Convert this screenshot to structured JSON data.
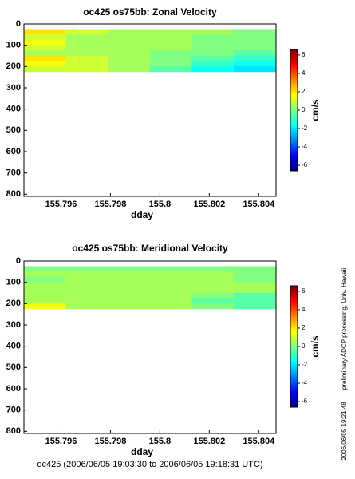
{
  "chart_data": [
    {
      "type": "heatmap",
      "title": "oc425 os75bb: Zonal Velocity",
      "xlabel": "dday",
      "colorbar_label": "cm/s",
      "x_edges": [
        155.7945,
        155.7962,
        155.7979,
        155.7996,
        155.8013,
        155.803,
        155.8047
      ],
      "y_edges": [
        25,
        50,
        75,
        100,
        125,
        150,
        175,
        200,
        225
      ],
      "values": [
        [
          2,
          1,
          0.5,
          0.5,
          0.5,
          0
        ],
        [
          1,
          0.5,
          0.5,
          0.5,
          0,
          0
        ],
        [
          1.5,
          0.5,
          0.5,
          0.5,
          0,
          0
        ],
        [
          1,
          0.5,
          0.5,
          0.5,
          0,
          0
        ],
        [
          0.5,
          0.5,
          0.5,
          0,
          0,
          -0.5
        ],
        [
          2,
          1,
          0.5,
          0,
          -0.5,
          -1
        ],
        [
          1.5,
          1,
          0.5,
          0,
          -1,
          -1.5
        ],
        [
          1,
          1,
          0.5,
          -0.5,
          -1.5,
          -2
        ]
      ],
      "xlim": [
        155.7945,
        155.8047
      ],
      "xticks": [
        155.796,
        155.798,
        155.8,
        155.802,
        155.804
      ],
      "ylim": [
        810,
        0
      ],
      "yticks": [
        0,
        100,
        200,
        300,
        400,
        500,
        600,
        700,
        800
      ],
      "clim": [
        -6.6,
        6.6
      ],
      "cticks": [
        -6,
        -4,
        -2,
        0,
        2,
        4,
        6
      ]
    },
    {
      "type": "heatmap",
      "title": "oc425 os75bb: Meridional Velocity",
      "xlabel": "dday",
      "colorbar_label": "cm/s",
      "x_edges": [
        155.7945,
        155.7962,
        155.7979,
        155.7996,
        155.8013,
        155.803,
        155.8047
      ],
      "y_edges": [
        25,
        50,
        75,
        100,
        125,
        150,
        175,
        200,
        225
      ],
      "values": [
        [
          0,
          0,
          0,
          0,
          0,
          0
        ],
        [
          0.5,
          0.5,
          0.5,
          0.5,
          0.5,
          0
        ],
        [
          0,
          0.5,
          0.5,
          0.5,
          0.5,
          0
        ],
        [
          0.5,
          0.5,
          0.5,
          0.5,
          0.5,
          0.5
        ],
        [
          0.5,
          0.5,
          0.5,
          0.5,
          0.5,
          0.5
        ],
        [
          0.5,
          0.5,
          0.5,
          0.5,
          0,
          -0.5
        ],
        [
          0.5,
          0.5,
          0.5,
          0.5,
          -0.5,
          -0.5
        ],
        [
          1.5,
          0.5,
          0.5,
          0.5,
          0,
          -0.5
        ]
      ],
      "xlim": [
        155.7945,
        155.8047
      ],
      "xticks": [
        155.796,
        155.798,
        155.8,
        155.802,
        155.804
      ],
      "ylim": [
        810,
        0
      ],
      "yticks": [
        0,
        100,
        200,
        300,
        400,
        500,
        600,
        700,
        800
      ],
      "clim": [
        -6.6,
        6.6
      ],
      "cticks": [
        -6,
        -4,
        -2,
        0,
        2,
        4,
        6
      ]
    }
  ],
  "footer": "oc425 (2006/06/05 19:03:30 to 2006/06/05 19:18:31 UTC)",
  "side_note": "preliminary ADCP processing,   Univ. Hawaii",
  "timestamp": "2006/06/05 19:21:48"
}
